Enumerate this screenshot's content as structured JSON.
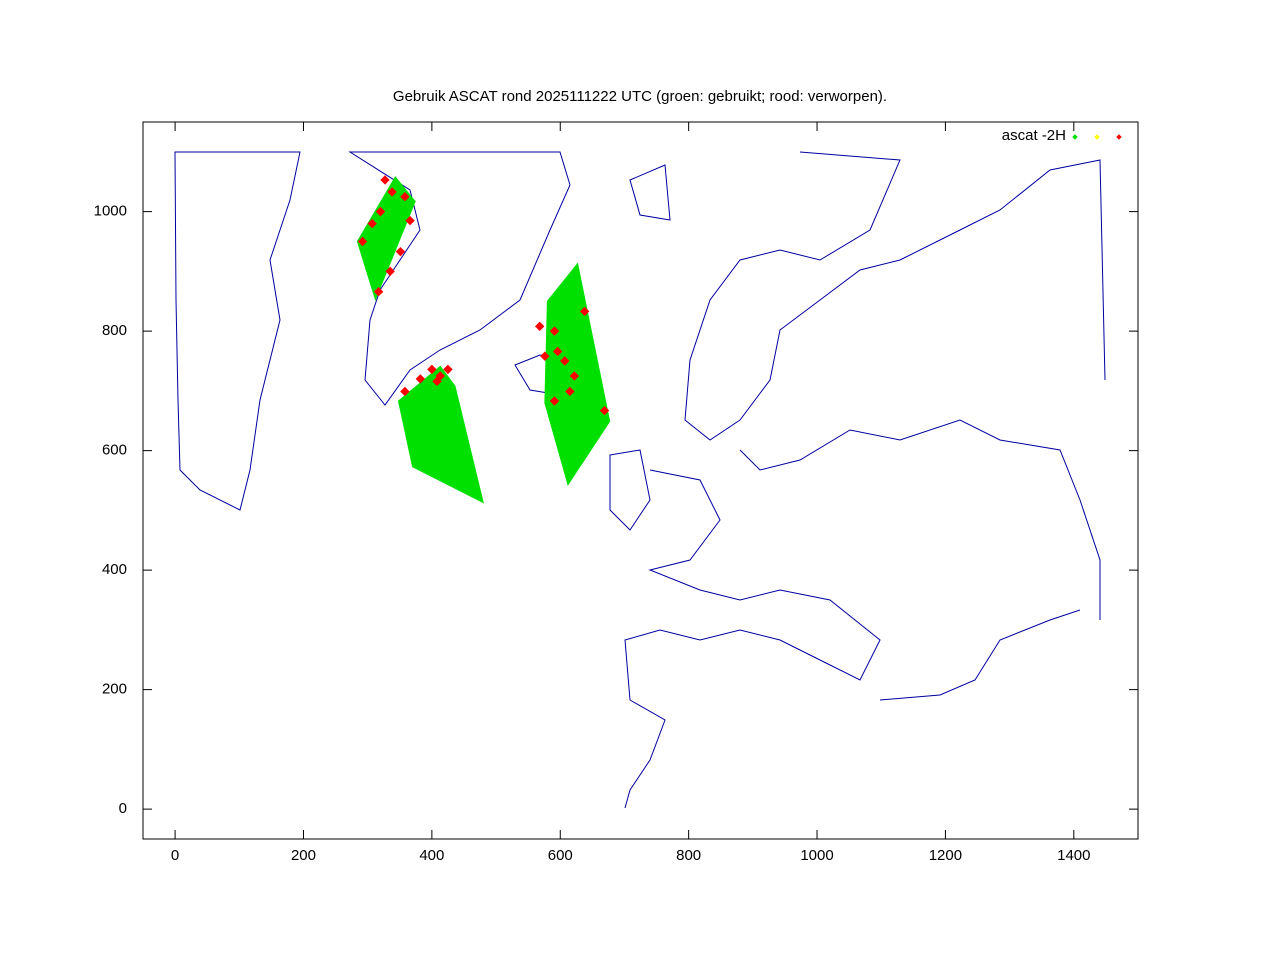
{
  "chart_data": {
    "type": "scatter",
    "title": "Gebruik ASCAT rond 2025111222 UTC (groen: gebruikt; rood: verworpen).",
    "legend_title": "ascat -2H",
    "legend": "top right",
    "xlim": [
      -50,
      1500
    ],
    "ylim": [
      -50,
      1150
    ],
    "xticks": [
      0,
      200,
      400,
      600,
      800,
      1000,
      1200,
      1400
    ],
    "yticks": [
      0,
      200,
      400,
      600,
      800,
      1000
    ],
    "series": [
      {
        "color": "#00e000",
        "marker": "area",
        "x": [
          284,
          343,
          374,
          312,
          null,
          348,
          413,
          436,
          480,
          370,
          null,
          580,
          627,
          677,
          612,
          576
        ],
        "y": [
          950,
          1058,
          1017,
          853,
          null,
          683,
          741,
          708,
          513,
          573,
          null,
          850,
          913,
          649,
          543,
          680
        ]
      },
      {
        "color": "#ffff00",
        "marker": "points",
        "x": [],
        "y": []
      },
      {
        "color": "#ff0000",
        "marker": "points",
        "x": [
          327,
          338,
          358,
          320,
          307,
          292,
          366,
          351,
          335,
          317,
          358,
          382,
          400,
          413,
          425,
          408,
          568,
          591,
          596,
          576,
          607,
          622,
          615,
          591,
          638,
          669
        ],
        "y": [
          1053,
          1033,
          1025,
          1000,
          980,
          950,
          985,
          933,
          900,
          866,
          699,
          720,
          736,
          725,
          736,
          716,
          808,
          800,
          766,
          758,
          750,
          725,
          699,
          683,
          833,
          667
        ]
      }
    ]
  }
}
